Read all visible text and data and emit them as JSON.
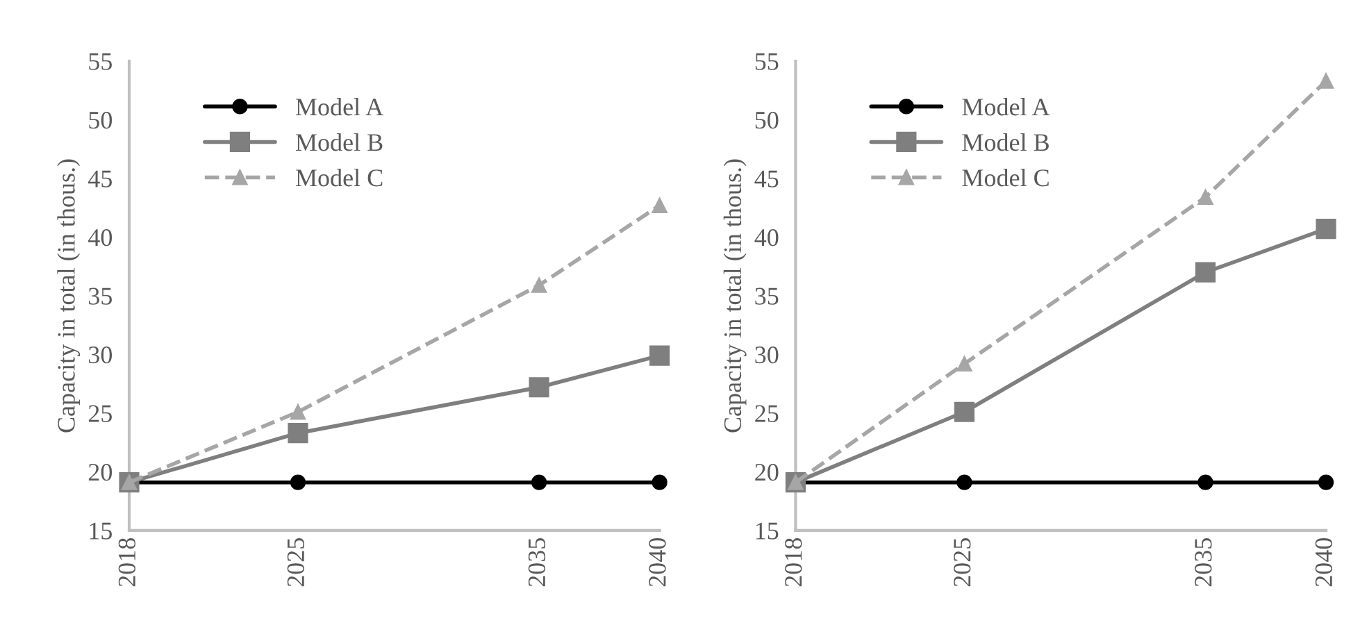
{
  "chart_data": [
    {
      "type": "line",
      "ylabel": "Capacity in total (in thous.)",
      "x": [
        2018,
        2025,
        2035,
        2040
      ],
      "xlim": [
        2018,
        2040
      ],
      "xticks": [
        2018,
        2025,
        2035,
        2040
      ],
      "ylim": [
        15,
        55
      ],
      "yticks": [
        15,
        20,
        25,
        30,
        35,
        40,
        45,
        50,
        55
      ],
      "grid": false,
      "legend": "top left",
      "series": [
        {
          "name": "Model A",
          "color": "#000000",
          "marker": "circle",
          "line_style": "solid",
          "values": [
            19.1,
            19.1,
            19.1,
            19.1
          ]
        },
        {
          "name": "Model B",
          "color": "#7f7f7f",
          "marker": "square",
          "line_style": "solid",
          "values": [
            19.1,
            23.3,
            27.2,
            29.9
          ]
        },
        {
          "name": "Model C",
          "color": "#a6a6a6",
          "marker": "triangle",
          "line_style": "dashed",
          "values": [
            19.1,
            25.1,
            35.9,
            42.7
          ]
        }
      ]
    },
    {
      "type": "line",
      "ylabel": "Capacity in total (in thous.)",
      "x": [
        2018,
        2025,
        2035,
        2040
      ],
      "xlim": [
        2018,
        2040
      ],
      "xticks": [
        2018,
        2025,
        2035,
        2040
      ],
      "ylim": [
        15,
        55
      ],
      "yticks": [
        15,
        20,
        25,
        30,
        35,
        40,
        45,
        50,
        55
      ],
      "grid": false,
      "legend": "top left",
      "series": [
        {
          "name": "Model A",
          "color": "#000000",
          "marker": "circle",
          "line_style": "solid",
          "values": [
            19.1,
            19.1,
            19.1,
            19.1
          ]
        },
        {
          "name": "Model B",
          "color": "#7f7f7f",
          "marker": "square",
          "line_style": "solid",
          "values": [
            19.1,
            25.1,
            37.0,
            40.7
          ]
        },
        {
          "name": "Model C",
          "color": "#a6a6a6",
          "marker": "triangle",
          "line_style": "dashed",
          "values": [
            19.1,
            29.2,
            43.4,
            53.3
          ]
        }
      ]
    }
  ]
}
